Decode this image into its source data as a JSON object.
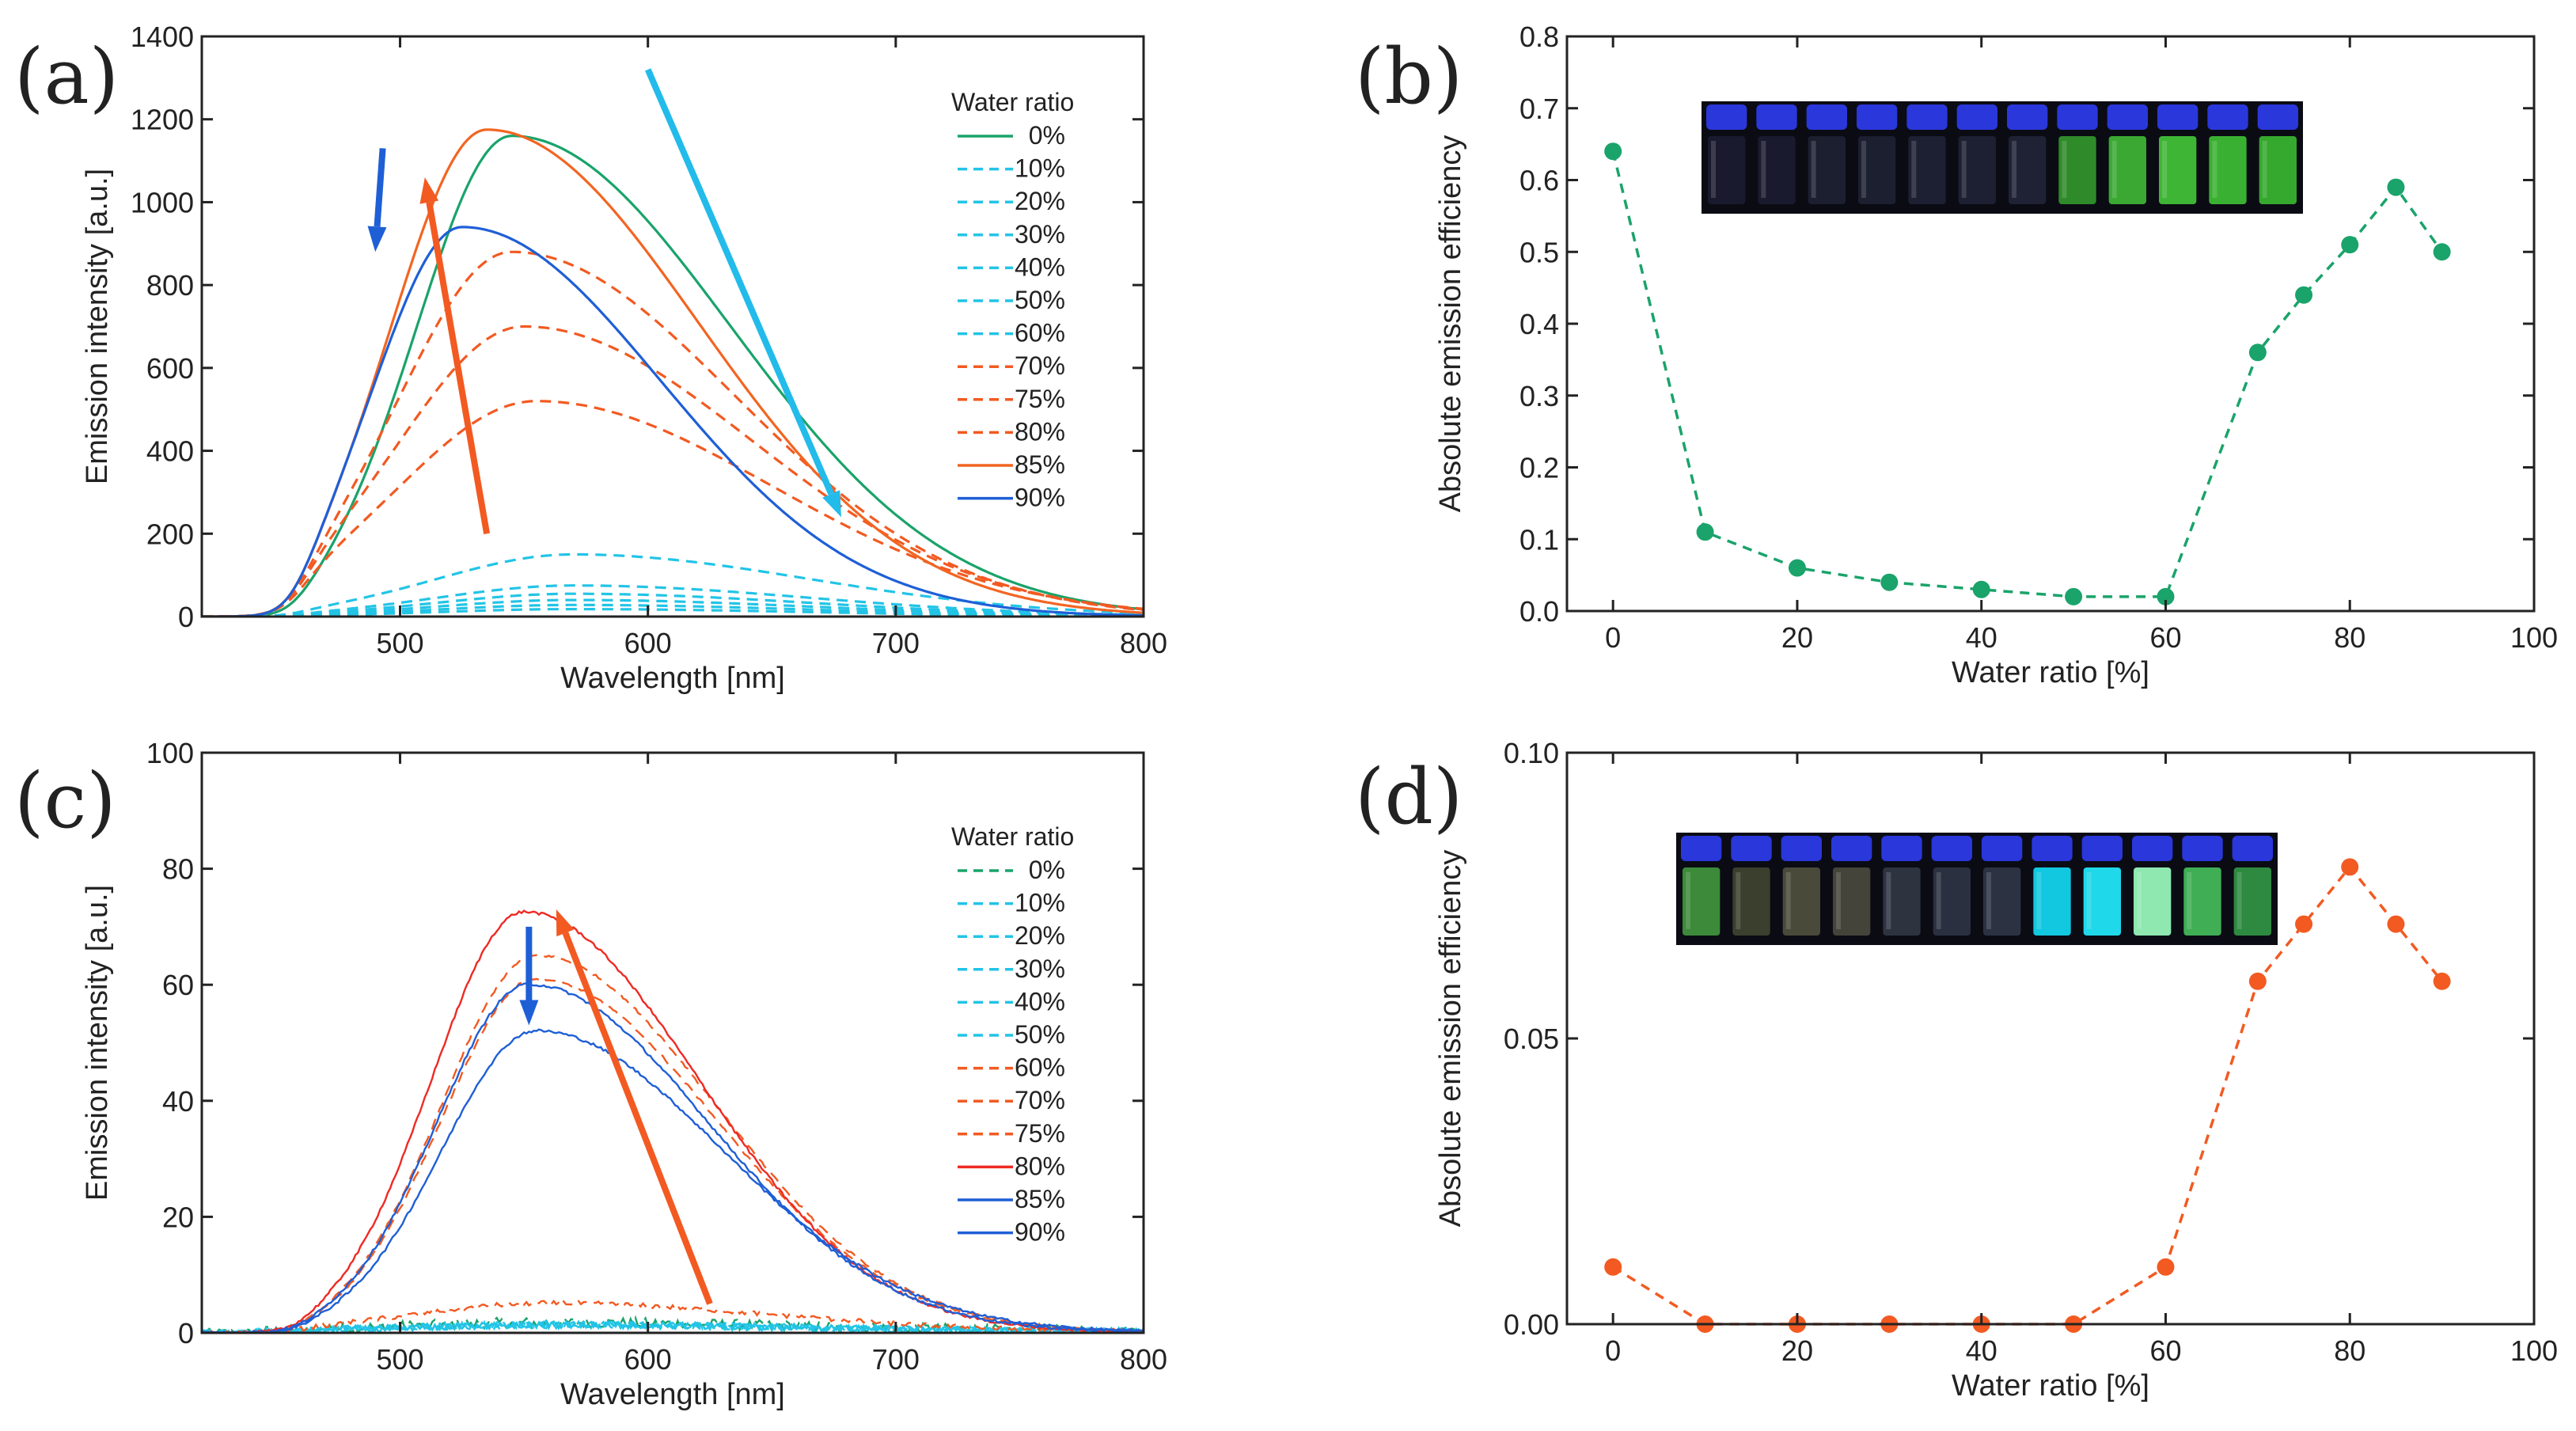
{
  "chart_data": [
    {
      "id": "a",
      "panel_label": "(a)",
      "type": "line",
      "xlabel": "Wavelength [nm]",
      "ylabel": "Emission intensity [a.u.]",
      "xlim": [
        420,
        800
      ],
      "ylim": [
        0,
        1400
      ],
      "xticks": [
        500,
        600,
        700,
        800
      ],
      "yticks": [
        0,
        200,
        400,
        600,
        800,
        1000,
        1200,
        1400
      ],
      "grid": false,
      "legend_title": "Water ratio",
      "legend_position": "top-right",
      "series": [
        {
          "name": "0%",
          "color": "#1aa36a",
          "dash": "solid",
          "peak": 1160,
          "center": 545,
          "wl": 38,
          "wr": 88
        },
        {
          "name": "10%",
          "color": "#22c4e6",
          "dash": "dashed",
          "peak": 150,
          "center": 570,
          "wl": 55,
          "wr": 95
        },
        {
          "name": "20%",
          "color": "#22c4e6",
          "dash": "dashed",
          "peak": 75,
          "center": 570,
          "wl": 55,
          "wr": 95
        },
        {
          "name": "30%",
          "color": "#22c4e6",
          "dash": "dashed",
          "peak": 55,
          "center": 570,
          "wl": 55,
          "wr": 95
        },
        {
          "name": "40%",
          "color": "#22c4e6",
          "dash": "dashed",
          "peak": 40,
          "center": 570,
          "wl": 55,
          "wr": 95
        },
        {
          "name": "50%",
          "color": "#22c4e6",
          "dash": "dashed",
          "peak": 28,
          "center": 570,
          "wl": 55,
          "wr": 95
        },
        {
          "name": "60%",
          "color": "#22c4e6",
          "dash": "dashed",
          "peak": 18,
          "center": 570,
          "wl": 55,
          "wr": 95
        },
        {
          "name": "70%",
          "color": "#f25a22",
          "dash": "dashed",
          "peak": 880,
          "center": 545,
          "wl": 45,
          "wr": 90
        },
        {
          "name": "75%",
          "color": "#f25a22",
          "dash": "dashed",
          "peak": 700,
          "center": 550,
          "wl": 50,
          "wr": 92
        },
        {
          "name": "80%",
          "color": "#f25a22",
          "dash": "dashed",
          "peak": 520,
          "center": 555,
          "wl": 55,
          "wr": 95
        },
        {
          "name": "85%",
          "color": "#f26522",
          "dash": "solid",
          "peak": 1175,
          "center": 535,
          "wl": 38,
          "wr": 85
        },
        {
          "name": "90%",
          "color": "#1f5fd6",
          "dash": "solid",
          "peak": 940,
          "center": 525,
          "wl": 35,
          "wr": 80
        }
      ],
      "arrows": [
        {
          "color": "#1f5fd6",
          "from": [
            493,
            1130
          ],
          "to": [
            490,
            880
          ]
        },
        {
          "color": "#f25a22",
          "from": [
            535,
            200
          ],
          "to": [
            510,
            1060
          ]
        },
        {
          "color": "#22bbea",
          "from": [
            600,
            1320
          ],
          "to": [
            678,
            240
          ]
        }
      ]
    },
    {
      "id": "b",
      "panel_label": "(b)",
      "type": "scatter",
      "xlabel": "Water ratio [%]",
      "ylabel": "Absolute emission efficiency",
      "xlim": [
        -5,
        100
      ],
      "ylim": [
        0,
        0.8
      ],
      "xticks": [
        0,
        20,
        40,
        60,
        80,
        100
      ],
      "yticks": [
        0.0,
        0.1,
        0.2,
        0.3,
        0.4,
        0.5,
        0.6,
        0.7,
        0.8
      ],
      "ytick_labels": [
        "0.0",
        "0.1",
        "0.2",
        "0.3",
        "0.4",
        "0.5",
        "0.6",
        "0.7",
        "0.8"
      ],
      "grid": false,
      "color": "#1aa36a",
      "x": [
        0,
        10,
        20,
        30,
        40,
        50,
        60,
        70,
        75,
        80,
        85,
        90
      ],
      "y": [
        0.64,
        0.11,
        0.06,
        0.04,
        0.03,
        0.02,
        0.02,
        0.36,
        0.44,
        0.51,
        0.59,
        0.5
      ],
      "inset_vials": [
        "#1a1a2e",
        "#1a1a2e",
        "#1c1f30",
        "#1c1f30",
        "#1d2032",
        "#1d2032",
        "#1e2234",
        "#2f8a2a",
        "#3aa832",
        "#3fb536",
        "#3ab032",
        "#35a82e"
      ]
    },
    {
      "id": "c",
      "panel_label": "(c)",
      "type": "line",
      "xlabel": "Wavelength [nm]",
      "ylabel": "Emission intensity [a.u.]",
      "xlim": [
        420,
        800
      ],
      "ylim": [
        0,
        100
      ],
      "xticks": [
        500,
        600,
        700,
        800
      ],
      "yticks": [
        0,
        20,
        40,
        60,
        80,
        100
      ],
      "grid": false,
      "legend_title": "Water ratio",
      "legend_position": "top-right",
      "series": [
        {
          "name": "0%",
          "color": "#1aa36a",
          "dash": "dashed",
          "peak": 1.5,
          "center": 560,
          "wl": 60,
          "wr": 100,
          "noise": 1.8
        },
        {
          "name": "10%",
          "color": "#22c4e6",
          "dash": "dashed",
          "peak": 1.2,
          "center": 560,
          "wl": 60,
          "wr": 100,
          "noise": 1.2
        },
        {
          "name": "20%",
          "color": "#22c4e6",
          "dash": "dashed",
          "peak": 1.2,
          "center": 560,
          "wl": 60,
          "wr": 100,
          "noise": 1.2
        },
        {
          "name": "30%",
          "color": "#22c4e6",
          "dash": "dashed",
          "peak": 1.2,
          "center": 560,
          "wl": 60,
          "wr": 100,
          "noise": 1.2
        },
        {
          "name": "40%",
          "color": "#22c4e6",
          "dash": "dashed",
          "peak": 1.2,
          "center": 560,
          "wl": 60,
          "wr": 100,
          "noise": 1.2
        },
        {
          "name": "50%",
          "color": "#22c4e6",
          "dash": "dashed",
          "peak": 1.2,
          "center": 560,
          "wl": 60,
          "wr": 100,
          "noise": 1.2
        },
        {
          "name": "60%",
          "color": "#f25a22",
          "dash": "dashed",
          "peak": 5,
          "center": 560,
          "wl": 55,
          "wr": 90,
          "noise": 0.8
        },
        {
          "name": "70%",
          "color": "#f25a22",
          "dash": "dashed",
          "peak": 65,
          "center": 555,
          "wl": 38,
          "wr": 72,
          "noise": 0.4
        },
        {
          "name": "75%",
          "color": "#f25a22",
          "dash": "dashed",
          "peak": 61,
          "center": 555,
          "wl": 38,
          "wr": 72,
          "noise": 0.4
        },
        {
          "name": "80%",
          "color": "#ee2a24",
          "dash": "solid",
          "peak": 72.5,
          "center": 550,
          "wl": 37,
          "wr": 70,
          "noise": 0.5
        },
        {
          "name": "85%",
          "color": "#1f5fd6",
          "dash": "solid",
          "peak": 60,
          "center": 552,
          "wl": 37,
          "wr": 72,
          "noise": 0.5
        },
        {
          "name": "90%",
          "color": "#1f5fd6",
          "dash": "solid",
          "peak": 52,
          "center": 555,
          "wl": 38,
          "wr": 75,
          "noise": 0.5
        }
      ],
      "arrows": [
        {
          "color": "#1f5fd6",
          "from": [
            552,
            70
          ],
          "to": [
            552,
            53
          ]
        },
        {
          "color": "#f25a22",
          "from": [
            625,
            5
          ],
          "to": [
            563,
            73
          ]
        }
      ]
    },
    {
      "id": "d",
      "panel_label": "(d)",
      "type": "scatter",
      "xlabel": "Water ratio [%]",
      "ylabel": "Absolute emission efficiency",
      "xlim": [
        -5,
        100
      ],
      "ylim": [
        0,
        0.1
      ],
      "xticks": [
        0,
        20,
        40,
        60,
        80,
        100
      ],
      "yticks": [
        0.0,
        0.05,
        0.1
      ],
      "ytick_labels": [
        "0.00",
        "0.05",
        "0.10"
      ],
      "grid": false,
      "color": "#f25a22",
      "x": [
        0,
        10,
        20,
        30,
        40,
        50,
        60,
        70,
        75,
        80,
        85,
        90
      ],
      "y": [
        0.01,
        0.0,
        0.0,
        0.0,
        0.0,
        0.0,
        0.01,
        0.06,
        0.07,
        0.08,
        0.07,
        0.06
      ],
      "inset_vials": [
        "#3c8a3a",
        "#3a3f2e",
        "#4a4a3a",
        "#44443a",
        "#2e3340",
        "#2a3040",
        "#2c3242",
        "#12c8e0",
        "#1fd8ea",
        "#8ee8b0",
        "#3fae55",
        "#2e8a40"
      ]
    }
  ]
}
